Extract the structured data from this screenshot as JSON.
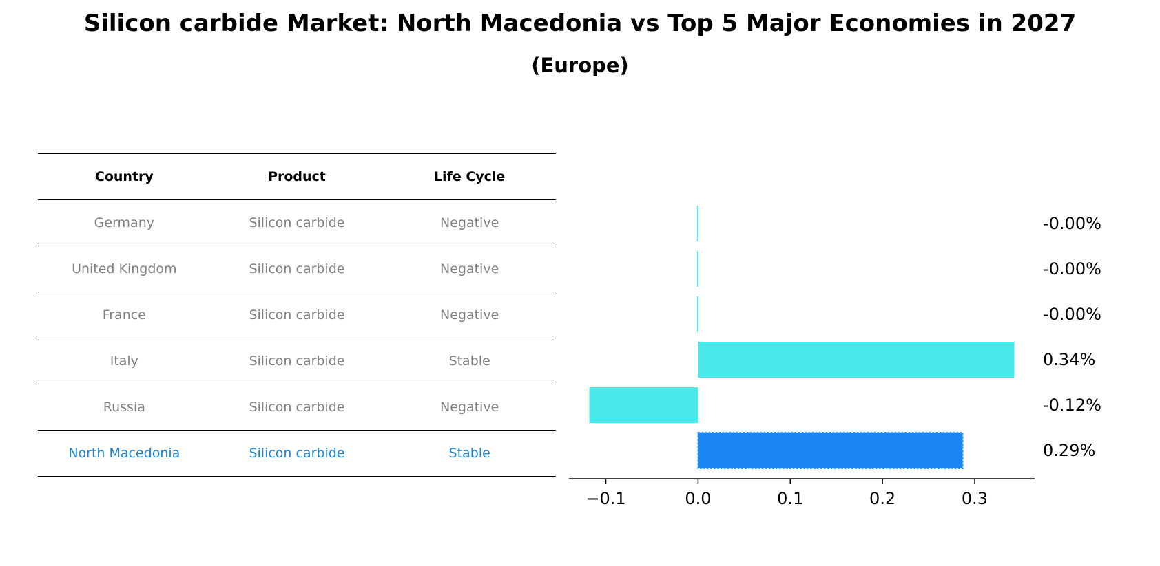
{
  "title": "Silicon carbide Market: North Macedonia vs Top 5 Major Economies in 2027",
  "subtitle": "(Europe)",
  "table": {
    "headers": [
      "Country",
      "Product",
      "Life Cycle"
    ],
    "rows": [
      {
        "country": "Germany",
        "product": "Silicon carbide",
        "life_cycle": "Negative"
      },
      {
        "country": "United Kingdom",
        "product": "Silicon carbide",
        "life_cycle": "Negative"
      },
      {
        "country": "France",
        "product": "Silicon carbide",
        "life_cycle": "Negative"
      },
      {
        "country": "Italy",
        "product": "Silicon carbide",
        "life_cycle": "Stable"
      },
      {
        "country": "Russia",
        "product": "Silicon carbide",
        "life_cycle": "Negative"
      },
      {
        "country": "North Macedonia",
        "product": "Silicon carbide",
        "life_cycle": "Stable"
      }
    ]
  },
  "colors": {
    "bar": "#4aeaea",
    "highlight_bar": "#1a86f4",
    "highlight_text": "#1a86d6",
    "row_text": "#808080"
  },
  "chart_data": {
    "type": "bar",
    "orientation": "horizontal",
    "categories": [
      "Germany",
      "United Kingdom",
      "France",
      "Italy",
      "Russia",
      "North Macedonia"
    ],
    "values": [
      -0.001,
      -0.001,
      -0.001,
      0.343,
      -0.118,
      0.287
    ],
    "data_labels": [
      "-0.00%",
      "-0.00%",
      "-0.00%",
      "0.34%",
      "-0.12%",
      "0.29%"
    ],
    "highlight_category": "North Macedonia",
    "xlim": [
      -0.14,
      0.365
    ],
    "xticks": [
      -0.1,
      0.0,
      0.1,
      0.2,
      0.3
    ],
    "xtick_labels": [
      "−0.1",
      "0.0",
      "0.1",
      "0.2",
      "0.3"
    ],
    "title": "",
    "xlabel": "",
    "ylabel": ""
  }
}
